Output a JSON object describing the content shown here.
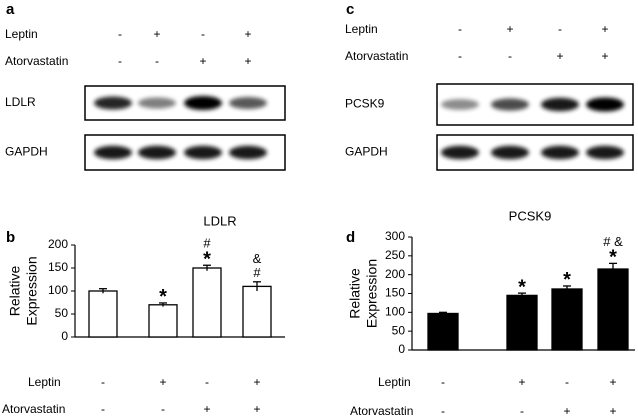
{
  "blots": [
    {
      "label": "a",
      "conditions": [
        {
          "name": "Leptin",
          "signs": [
            "-",
            "+",
            "-",
            "+"
          ]
        },
        {
          "name": "Atorvastatin",
          "signs": [
            "-",
            "-",
            "+",
            "+"
          ]
        }
      ],
      "bands": [
        "LDLR",
        "GAPDH"
      ]
    },
    {
      "label": "c",
      "conditions": [
        {
          "name": "Leptin",
          "signs": [
            "-",
            "+",
            "-",
            "+"
          ]
        },
        {
          "name": "Atorvastatin",
          "signs": [
            "-",
            "-",
            "+",
            "+"
          ]
        }
      ],
      "bands": [
        "PCSK9",
        "GAPDH"
      ]
    }
  ],
  "chart_data": [
    {
      "type": "bar",
      "label": "b",
      "title": "LDLR",
      "y_label": [
        "Relative",
        "Expression"
      ],
      "color": "#ffffff",
      "values": [
        100,
        70,
        150,
        110
      ],
      "errors": [
        5,
        4,
        6,
        10
      ],
      "annotations": [
        null,
        [
          "*"
        ],
        [
          "#",
          "*"
        ],
        [
          "&",
          "#"
        ]
      ],
      "conditions": [
        {
          "name": "Leptin",
          "signs": [
            "-",
            "+",
            "-",
            "+"
          ]
        },
        {
          "name": "Atorvastatin",
          "signs": [
            "-",
            "-",
            "+",
            "+"
          ]
        }
      ],
      "ylim": [
        0,
        200
      ],
      "yticks": [
        0,
        50,
        100,
        150,
        200
      ]
    },
    {
      "type": "bar",
      "label": "d",
      "title": "PCSK9",
      "y_label": [
        "Relative",
        "Expression"
      ],
      "color": "#000000",
      "values": [
        97,
        145,
        162,
        215
      ],
      "errors": [
        3,
        6,
        8,
        15
      ],
      "annotations": [
        null,
        [
          "*"
        ],
        [
          "*"
        ],
        [
          "# &",
          "*"
        ]
      ],
      "conditions": [
        {
          "name": "Leptin",
          "signs": [
            "-",
            "+",
            "-",
            "+"
          ]
        },
        {
          "name": "Atorvastatin",
          "signs": [
            "-",
            "-",
            "+",
            "+"
          ]
        }
      ],
      "ylim": [
        0,
        300
      ],
      "yticks": [
        0,
        50,
        100,
        150,
        200,
        250,
        300
      ]
    }
  ]
}
